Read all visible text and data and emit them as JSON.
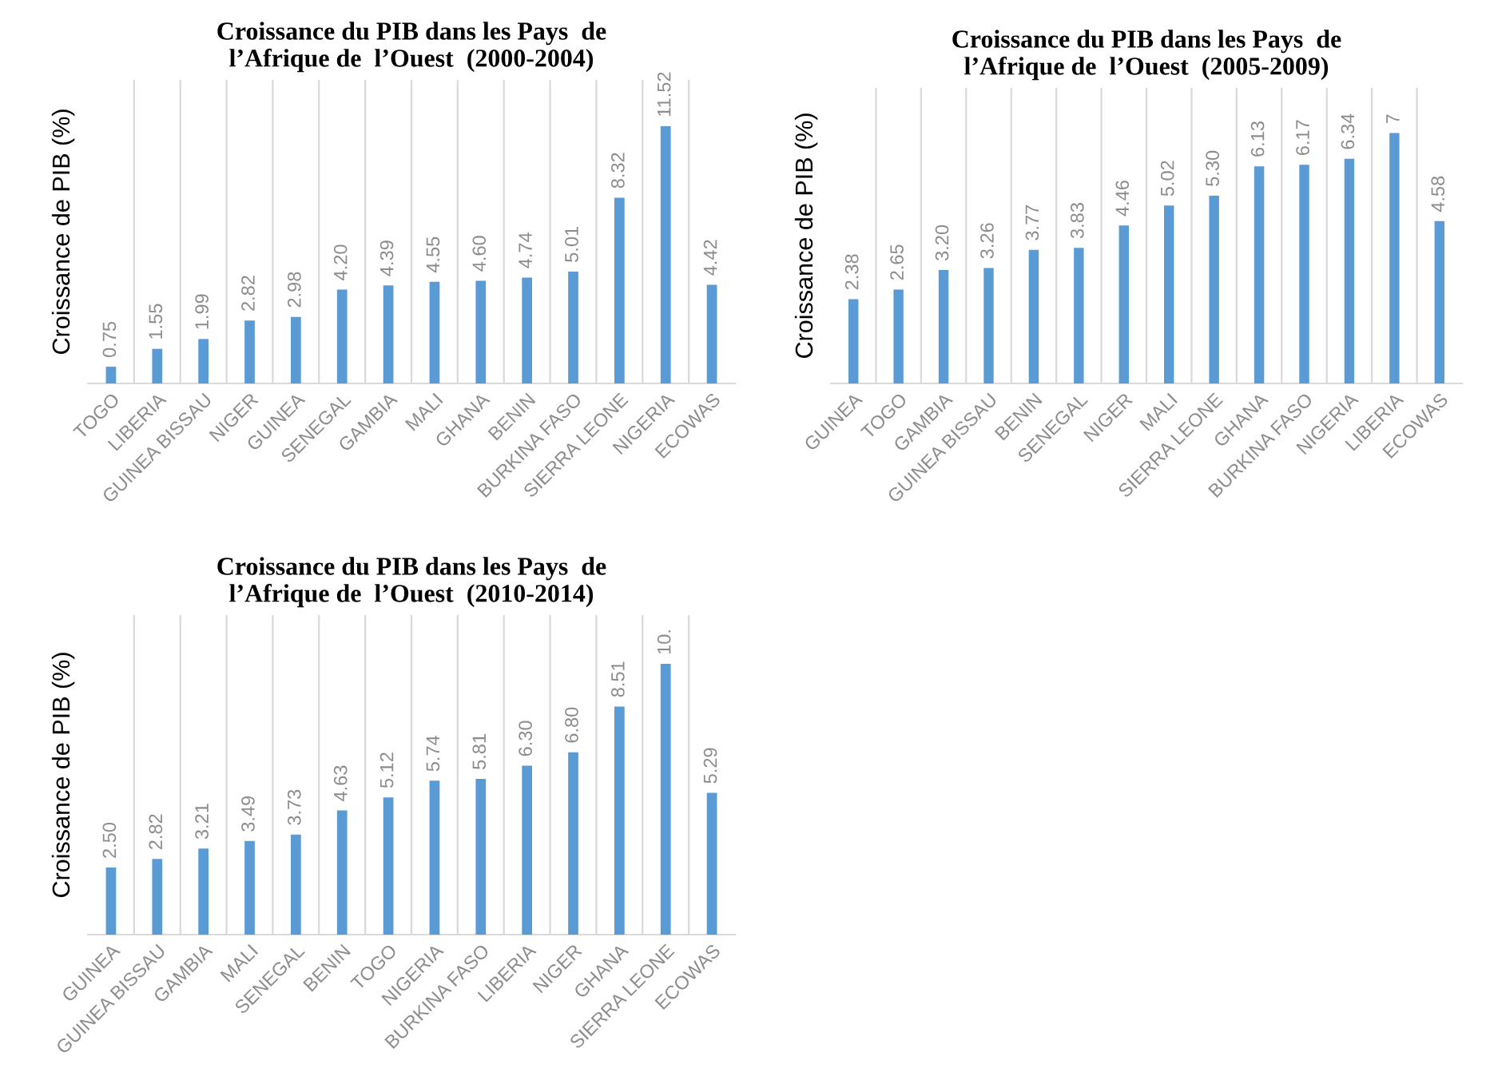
{
  "chart_data": [
    {
      "type": "bar",
      "title": "Croissance du PIB dans les Pays  de\nl’Afrique de  l’Ouest  (2000-2004)",
      "ylabel": "Croissance de PIB (%)",
      "categories": [
        "TOGO",
        "LIBERIA",
        "GUINEA BISSAU",
        "NIGER",
        "GUINEA",
        "SENEGAL",
        "GAMBIA",
        "MALI",
        "GHANA",
        "BENIN",
        "BURKINA FASO",
        "SIERRA LEONE",
        "NIGERIA",
        "ECOWAS"
      ],
      "values": [
        0.75,
        1.55,
        1.99,
        2.82,
        2.98,
        4.2,
        4.39,
        4.55,
        4.6,
        4.74,
        5.01,
        8.32,
        11.52,
        4.42
      ],
      "value_labels": [
        "0.75",
        "1.55",
        "1.99",
        "2.82",
        "2.98",
        "4.20",
        "4.39",
        "4.55",
        "4.60",
        "4.74",
        "5.01",
        "8.32",
        "11.52",
        "4.42"
      ],
      "color": "#5b9bd5",
      "grid": "x",
      "tick_labels": "x"
    },
    {
      "type": "bar",
      "title": "Croissance du PIB dans les Pays  de\nl’Afrique de  l’Ouest  (2005-2009)",
      "ylabel": "Croissance de PIB (%)",
      "categories": [
        "GUINEA",
        "TOGO",
        "GAMBIA",
        "GUINEA BISSAU",
        "BENIN",
        "SENEGAL",
        "NIGER",
        "MALI",
        "SIERRA LEONE",
        "GHANA",
        "BURKINA FASO",
        "NIGERIA",
        "LIBERIA",
        "ECOWAS"
      ],
      "values": [
        2.38,
        2.65,
        3.2,
        3.26,
        3.77,
        3.83,
        4.46,
        5.02,
        5.3,
        6.13,
        6.17,
        6.34,
        7.07,
        4.58
      ],
      "value_labels": [
        "2.38",
        "2.65",
        "3.20",
        "3.26",
        "3.77",
        "3.83",
        "4.46",
        "5.02",
        "5.30",
        "6.13",
        "6.17",
        "6.34",
        "7",
        "4.58"
      ],
      "color": "#5b9bd5",
      "grid": "x",
      "tick_labels": "x"
    },
    {
      "type": "bar",
      "title": "Croissance du PIB dans les Pays  de\nl’Afrique de  l’Ouest  (2010-2014)",
      "ylabel": "Croissance de PIB (%)",
      "categories": [
        "GUINEA",
        "GUINEA BISSAU",
        "GAMBIA",
        "MALI",
        "SENEGAL",
        "BENIN",
        "TOGO",
        "NIGERIA",
        "BURKINA FASO",
        "LIBERIA",
        "NIGER",
        "GHANA",
        "SIERRA LEONE",
        "ECOWAS"
      ],
      "values": [
        2.5,
        2.82,
        3.21,
        3.49,
        3.73,
        4.63,
        5.12,
        5.74,
        5.81,
        6.3,
        6.8,
        8.51,
        10.1,
        5.29
      ],
      "value_labels": [
        "2.50",
        "2.82",
        "3.21",
        "3.49",
        "3.73",
        "4.63",
        "5.12",
        "5.74",
        "5.81",
        "6.30",
        "6.80",
        "8.51",
        "10.",
        "5.29"
      ],
      "color": "#5b9bd5",
      "grid": "x",
      "tick_labels": "x"
    }
  ]
}
